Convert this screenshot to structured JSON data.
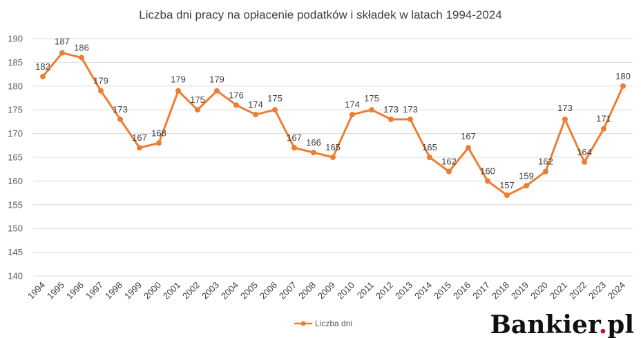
{
  "brand": {
    "name_main": "Bankier",
    "name_dot": ".",
    "name_tld": "pl",
    "dot_color": "#c8102e"
  },
  "colors": {
    "series": "#ed7d31",
    "grid": "#d9d9d9",
    "text": "#404040"
  },
  "chart_data": {
    "type": "line",
    "title": "Liczba dni pracy na opłacenie podatków i składek w latach 1994-2024",
    "xlabel": "",
    "ylabel": "",
    "ylim": [
      140,
      190
    ],
    "yticks": [
      140,
      145,
      150,
      155,
      160,
      165,
      170,
      175,
      180,
      185,
      190
    ],
    "grid": true,
    "legend_position": "bottom",
    "x": [
      "1994",
      "1995",
      "1996",
      "1997",
      "1998",
      "1999",
      "2000",
      "2001",
      "2002",
      "2003",
      "2004",
      "2005",
      "2006",
      "2007",
      "2008",
      "2009",
      "2010",
      "2011",
      "2012",
      "2013",
      "2014",
      "2015",
      "2016",
      "2017",
      "2018",
      "2019",
      "2020",
      "2021",
      "2022",
      "2023",
      "2024"
    ],
    "series": [
      {
        "name": "Liczba dni",
        "values": [
          182,
          187,
          186,
          179,
          173,
          167,
          168,
          179,
          175,
          179,
          176,
          174,
          175,
          167,
          166,
          165,
          174,
          175,
          173,
          173,
          165,
          162,
          167,
          160,
          157,
          159,
          162,
          173,
          164,
          171,
          180
        ]
      }
    ]
  }
}
